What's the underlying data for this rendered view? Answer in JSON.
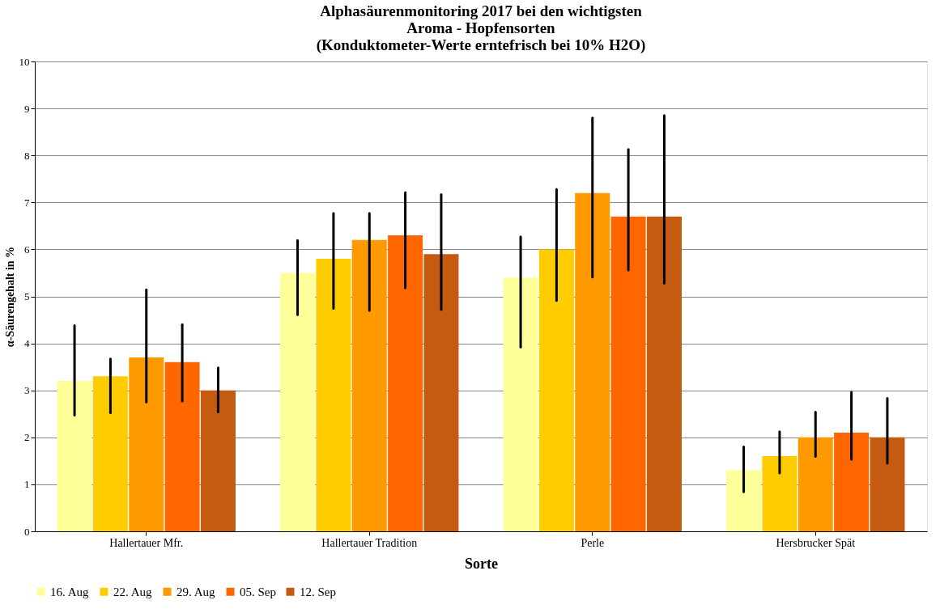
{
  "chart_data": {
    "type": "bar",
    "title": [
      "Alphasäurenmonitoring 2017 bei den wichtigsten",
      "Aroma - Hopfensorten",
      "(Konduktometer-Werte erntefrisch bei 10% H2O)"
    ],
    "xlabel": "Sorte",
    "ylabel": "α-Säurengehalt  in %",
    "categories": [
      "Hallertauer Mfr.",
      "Hallertauer Tradition",
      "Perle",
      "Hersbrucker Spät"
    ],
    "series": [
      {
        "name": "16. Aug",
        "color": "#ffff99",
        "values": [
          3.2,
          5.5,
          5.4,
          1.3
        ],
        "errors": [
          [
            2.47,
            4.38
          ],
          [
            4.61,
            6.19
          ],
          [
            3.92,
            6.27
          ],
          [
            0.84,
            1.8
          ]
        ]
      },
      {
        "name": "22. Aug",
        "color": "#ffcc00",
        "values": [
          3.3,
          5.8,
          6.0,
          1.6
        ],
        "errors": [
          [
            2.52,
            3.67
          ],
          [
            4.74,
            6.77
          ],
          [
            4.91,
            7.28
          ],
          [
            1.24,
            2.12
          ]
        ]
      },
      {
        "name": "29. Aug",
        "color": "#ff9900",
        "values": [
          3.7,
          6.2,
          7.2,
          2.0
        ],
        "errors": [
          [
            2.75,
            5.14
          ],
          [
            4.7,
            6.77
          ],
          [
            5.41,
            8.8
          ],
          [
            1.59,
            2.54
          ]
        ]
      },
      {
        "name": "05. Sep",
        "color": "#ff6600",
        "values": [
          3.6,
          6.3,
          6.7,
          2.1
        ],
        "errors": [
          [
            2.77,
            4.4
          ],
          [
            5.18,
            7.21
          ],
          [
            5.56,
            8.13
          ],
          [
            1.53,
            2.96
          ]
        ]
      },
      {
        "name": "12. Sep",
        "color": "#c55a11",
        "values": [
          3.0,
          5.9,
          6.7,
          2.0
        ],
        "errors": [
          [
            2.54,
            3.48
          ],
          [
            4.72,
            7.17
          ],
          [
            5.28,
            8.85
          ],
          [
            1.45,
            2.83
          ]
        ]
      }
    ],
    "ylim": [
      0,
      10
    ],
    "yticks": [
      0,
      1,
      2,
      3,
      4,
      5,
      6,
      7,
      8,
      9,
      10
    ],
    "grid": "y",
    "legend": "bottom"
  }
}
